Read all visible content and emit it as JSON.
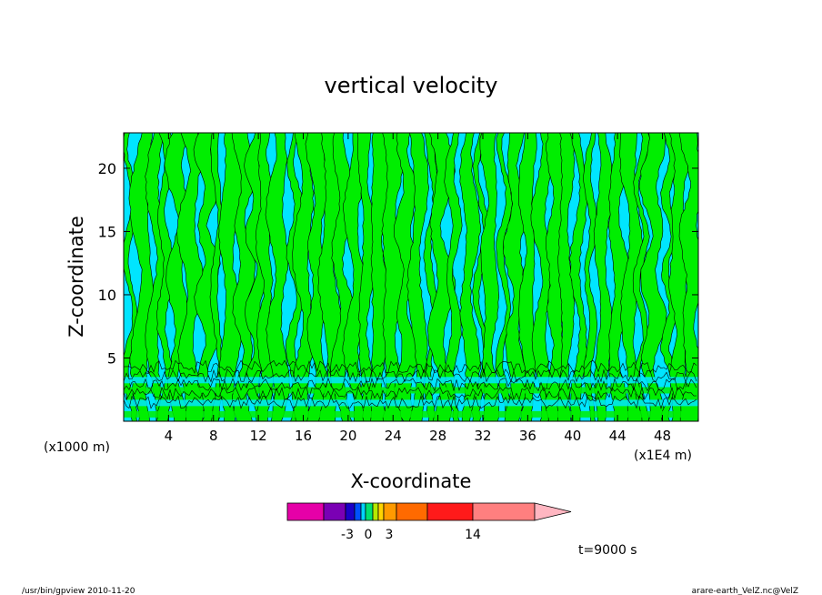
{
  "chart_data": {
    "type": "heatmap",
    "title": "vertical velocity",
    "xlabel": "X-coordinate",
    "ylabel": "Z-coordinate",
    "x_unit_left": "(x1000 m)",
    "x_unit_right": "(x1E4 m)",
    "xlim": [
      0,
      51.2
    ],
    "ylim": [
      0,
      22.8
    ],
    "x_ticks": [
      4,
      8,
      12,
      16,
      20,
      24,
      28,
      32,
      36,
      40,
      44,
      48
    ],
    "y_ticks": [
      5,
      10,
      15,
      20
    ],
    "colors": {
      "negative": "#00e5ff",
      "positive": "#00ee00",
      "contour": "#000000"
    },
    "colorbar": {
      "boundary_labels": [
        "-3",
        "0",
        "3",
        "14"
      ],
      "bins": [
        {
          "color": "#e600a8"
        },
        {
          "color": "#7a00b4"
        },
        {
          "color": "#1b00c8"
        },
        {
          "color": "#0050ff"
        },
        {
          "color": "#00d4ff"
        },
        {
          "color": "#00e070"
        },
        {
          "color": "#b6e800"
        },
        {
          "color": "#ffd400"
        },
        {
          "color": "#ff9a00"
        },
        {
          "color": "#ff6a00"
        },
        {
          "color": "#ff1a1a"
        },
        {
          "color": "#ff7f7f"
        },
        {
          "color": "#ffb6c1"
        }
      ]
    },
    "time_label": "t=9000 s"
  },
  "footer": {
    "left": "/usr/bin/gpview   2010-11-20",
    "right": "arare-earth_VelZ.nc@VelZ"
  }
}
